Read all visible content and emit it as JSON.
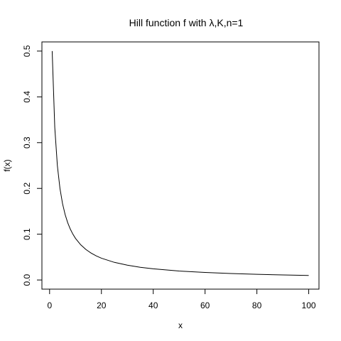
{
  "chart_data": {
    "type": "line",
    "title": "Hill function f with λ,K,n=1",
    "xlabel": "x",
    "ylabel": "f(x)",
    "xlim": [
      1,
      100
    ],
    "ylim": [
      0,
      0.5
    ],
    "x_ticks": [
      0,
      20,
      40,
      60,
      80,
      100
    ],
    "y_ticks": [
      0.0,
      0.1,
      0.2,
      0.3,
      0.4,
      0.5
    ],
    "x_tick_labels": [
      "0",
      "20",
      "40",
      "60",
      "80",
      "100"
    ],
    "y_tick_labels": [
      "0.0",
      "0.1",
      "0.2",
      "0.3",
      "0.4",
      "0.5"
    ],
    "grid": false,
    "legend": "none",
    "series": [
      {
        "x": [
          1,
          2,
          3,
          4,
          5,
          6,
          7,
          8,
          9,
          10,
          12,
          14,
          16,
          18,
          20,
          25,
          30,
          35,
          40,
          50,
          60,
          70,
          80,
          90,
          100
        ],
        "values": [
          0.5,
          0.3333,
          0.25,
          0.2,
          0.1667,
          0.1429,
          0.125,
          0.1111,
          0.1,
          0.0909,
          0.0769,
          0.0667,
          0.0588,
          0.0526,
          0.0476,
          0.0385,
          0.0323,
          0.0278,
          0.0244,
          0.0196,
          0.0164,
          0.0141,
          0.0123,
          0.011,
          0.0099
        ],
        "color": "#000000"
      }
    ]
  }
}
